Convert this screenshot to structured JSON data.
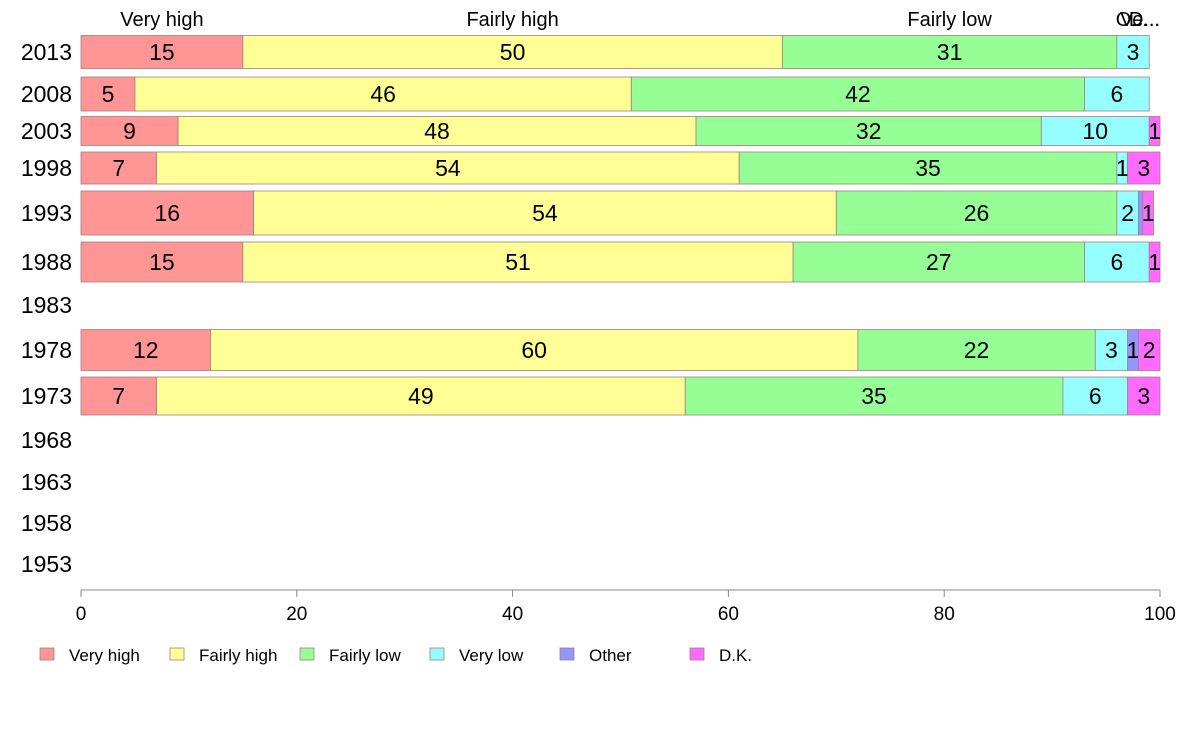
{
  "chart_data": {
    "type": "bar",
    "orientation": "horizontal",
    "stacked": true,
    "title": "",
    "xlabel": "",
    "ylabel": "",
    "xlim": [
      0,
      100
    ],
    "x_ticks": [
      "0",
      "20",
      "40",
      "60",
      "80",
      "100"
    ],
    "grid": false,
    "legend_position": "bottom",
    "top_labels": [
      "Very high",
      "Fairly high",
      "Fairly low",
      "Ve...",
      "O...",
      "D..."
    ],
    "categories": [
      "2013",
      "2008",
      "2003",
      "1998",
      "1993",
      "1988",
      "1983",
      "1978",
      "1973",
      "1968",
      "1963",
      "1958",
      "1953"
    ],
    "series": [
      {
        "name": "Very high",
        "color": "#ff9595",
        "values": [
          15,
          5,
          9,
          7,
          16,
          15,
          null,
          12,
          7,
          null,
          null,
          null,
          null
        ]
      },
      {
        "name": "Fairly high",
        "color": "#ffff95",
        "values": [
          50,
          46,
          48,
          54,
          54,
          51,
          null,
          60,
          49,
          null,
          null,
          null,
          null
        ]
      },
      {
        "name": "Fairly low",
        "color": "#95ff95",
        "values": [
          31,
          42,
          32,
          35,
          26,
          27,
          null,
          22,
          35,
          null,
          null,
          null,
          null
        ]
      },
      {
        "name": "Very low",
        "color": "#95ffff",
        "values": [
          3,
          6,
          10,
          1,
          2,
          6,
          null,
          3,
          6,
          null,
          null,
          null,
          null
        ]
      },
      {
        "name": "Other",
        "color": "#9595ff",
        "values": [
          0,
          0,
          0,
          0,
          0.4,
          0,
          null,
          1,
          0,
          null,
          null,
          null,
          null
        ]
      },
      {
        "name": "D.K.",
        "color": "#ff6bff",
        "values": [
          0,
          0,
          1,
          3,
          1,
          1,
          null,
          2,
          3,
          null,
          null,
          null,
          null
        ]
      }
    ],
    "value_labels": [
      [
        "15",
        "50",
        "31",
        "3",
        "",
        ""
      ],
      [
        "5",
        "46",
        "42",
        "6",
        "",
        ""
      ],
      [
        "9",
        "48",
        "32",
        "10",
        "",
        "1"
      ],
      [
        "7",
        "54",
        "35",
        "1",
        "",
        "3"
      ],
      [
        "16",
        "54",
        "26",
        "2",
        "",
        "1"
      ],
      [
        "15",
        "51",
        "27",
        "6",
        "",
        "1"
      ],
      [
        "",
        "",
        "",
        "",
        "",
        ""
      ],
      [
        "12",
        "60",
        "22",
        "3",
        "1",
        "2"
      ],
      [
        "7",
        "49",
        "35",
        "6",
        "",
        "3"
      ],
      [
        "",
        "",
        "",
        "",
        "",
        ""
      ],
      [
        "",
        "",
        "",
        "",
        "",
        ""
      ],
      [
        "",
        "",
        "",
        "",
        "",
        ""
      ],
      [
        "",
        "",
        "",
        "",
        "",
        ""
      ]
    ]
  }
}
